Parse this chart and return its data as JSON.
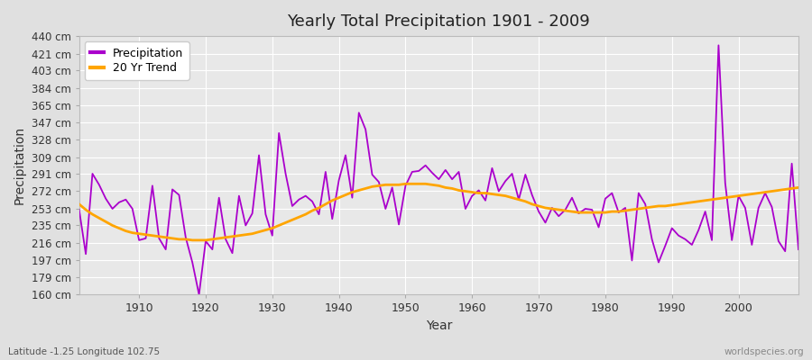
{
  "title": "Yearly Total Precipitation 1901 - 2009",
  "xlabel": "Year",
  "ylabel": "Precipitation",
  "subtitle": "Latitude -1.25 Longitude 102.75",
  "watermark": "worldspecies.org",
  "precip_color": "#AA00CC",
  "trend_color": "#FFA500",
  "background_color": "#E0E0E0",
  "plot_bg_color": "#E8E8E8",
  "grid_color": "#FFFFFF",
  "ytick_labels": [
    "160 cm",
    "179 cm",
    "197 cm",
    "216 cm",
    "235 cm",
    "253 cm",
    "272 cm",
    "291 cm",
    "309 cm",
    "328 cm",
    "347 cm",
    "365 cm",
    "384 cm",
    "403 cm",
    "421 cm",
    "440 cm"
  ],
  "ytick_values": [
    160,
    179,
    197,
    216,
    235,
    253,
    272,
    291,
    309,
    328,
    347,
    365,
    384,
    403,
    421,
    440
  ],
  "years": [
    1901,
    1902,
    1903,
    1904,
    1905,
    1906,
    1907,
    1908,
    1909,
    1910,
    1911,
    1912,
    1913,
    1914,
    1915,
    1916,
    1917,
    1918,
    1919,
    1920,
    1921,
    1922,
    1923,
    1924,
    1925,
    1926,
    1927,
    1928,
    1929,
    1930,
    1931,
    1932,
    1933,
    1934,
    1935,
    1936,
    1937,
    1938,
    1939,
    1940,
    1941,
    1942,
    1943,
    1944,
    1945,
    1946,
    1947,
    1948,
    1949,
    1950,
    1951,
    1952,
    1953,
    1954,
    1955,
    1956,
    1957,
    1958,
    1959,
    1960,
    1961,
    1962,
    1963,
    1964,
    1965,
    1966,
    1967,
    1968,
    1969,
    1970,
    1971,
    1972,
    1973,
    1974,
    1975,
    1976,
    1977,
    1978,
    1979,
    1980,
    1981,
    1982,
    1983,
    1984,
    1985,
    1986,
    1987,
    1988,
    1989,
    1990,
    1991,
    1992,
    1993,
    1994,
    1995,
    1996,
    1997,
    1998,
    1999,
    2000,
    2001,
    2002,
    2003,
    2004,
    2005,
    2006,
    2007,
    2008,
    2009
  ],
  "precip": [
    252,
    204,
    291,
    279,
    264,
    253,
    260,
    263,
    253,
    219,
    221,
    278,
    221,
    209,
    274,
    268,
    222,
    195,
    160,
    218,
    209,
    265,
    220,
    205,
    267,
    235,
    248,
    311,
    247,
    224,
    335,
    291,
    256,
    263,
    267,
    261,
    247,
    293,
    242,
    284,
    311,
    265,
    357,
    339,
    290,
    282,
    253,
    276,
    236,
    278,
    293,
    294,
    300,
    292,
    285,
    295,
    285,
    293,
    253,
    267,
    273,
    262,
    297,
    272,
    283,
    291,
    263,
    290,
    268,
    250,
    238,
    254,
    245,
    252,
    265,
    248,
    253,
    252,
    233,
    264,
    270,
    249,
    254,
    197,
    270,
    258,
    220,
    195,
    213,
    232,
    224,
    220,
    214,
    230,
    250,
    219,
    430,
    281,
    219,
    267,
    254,
    214,
    254,
    270,
    255,
    218,
    207,
    302,
    209
  ],
  "trend": [
    258,
    252,
    247,
    243,
    239,
    235,
    232,
    229,
    227,
    226,
    225,
    224,
    223,
    222,
    221,
    220,
    220,
    219,
    219,
    219,
    220,
    221,
    222,
    223,
    224,
    225,
    226,
    228,
    230,
    232,
    235,
    238,
    241,
    244,
    247,
    251,
    254,
    258,
    262,
    265,
    268,
    271,
    273,
    275,
    277,
    278,
    279,
    279,
    279,
    280,
    280,
    280,
    280,
    279,
    278,
    276,
    275,
    273,
    272,
    271,
    270,
    270,
    269,
    268,
    267,
    265,
    263,
    261,
    258,
    256,
    254,
    253,
    252,
    251,
    250,
    249,
    249,
    249,
    249,
    249,
    250,
    250,
    251,
    252,
    253,
    254,
    255,
    256,
    256,
    257,
    258,
    259,
    260,
    261,
    262,
    263,
    264,
    265,
    266,
    267,
    268,
    269,
    270,
    271,
    272,
    273,
    274,
    275,
    276
  ]
}
